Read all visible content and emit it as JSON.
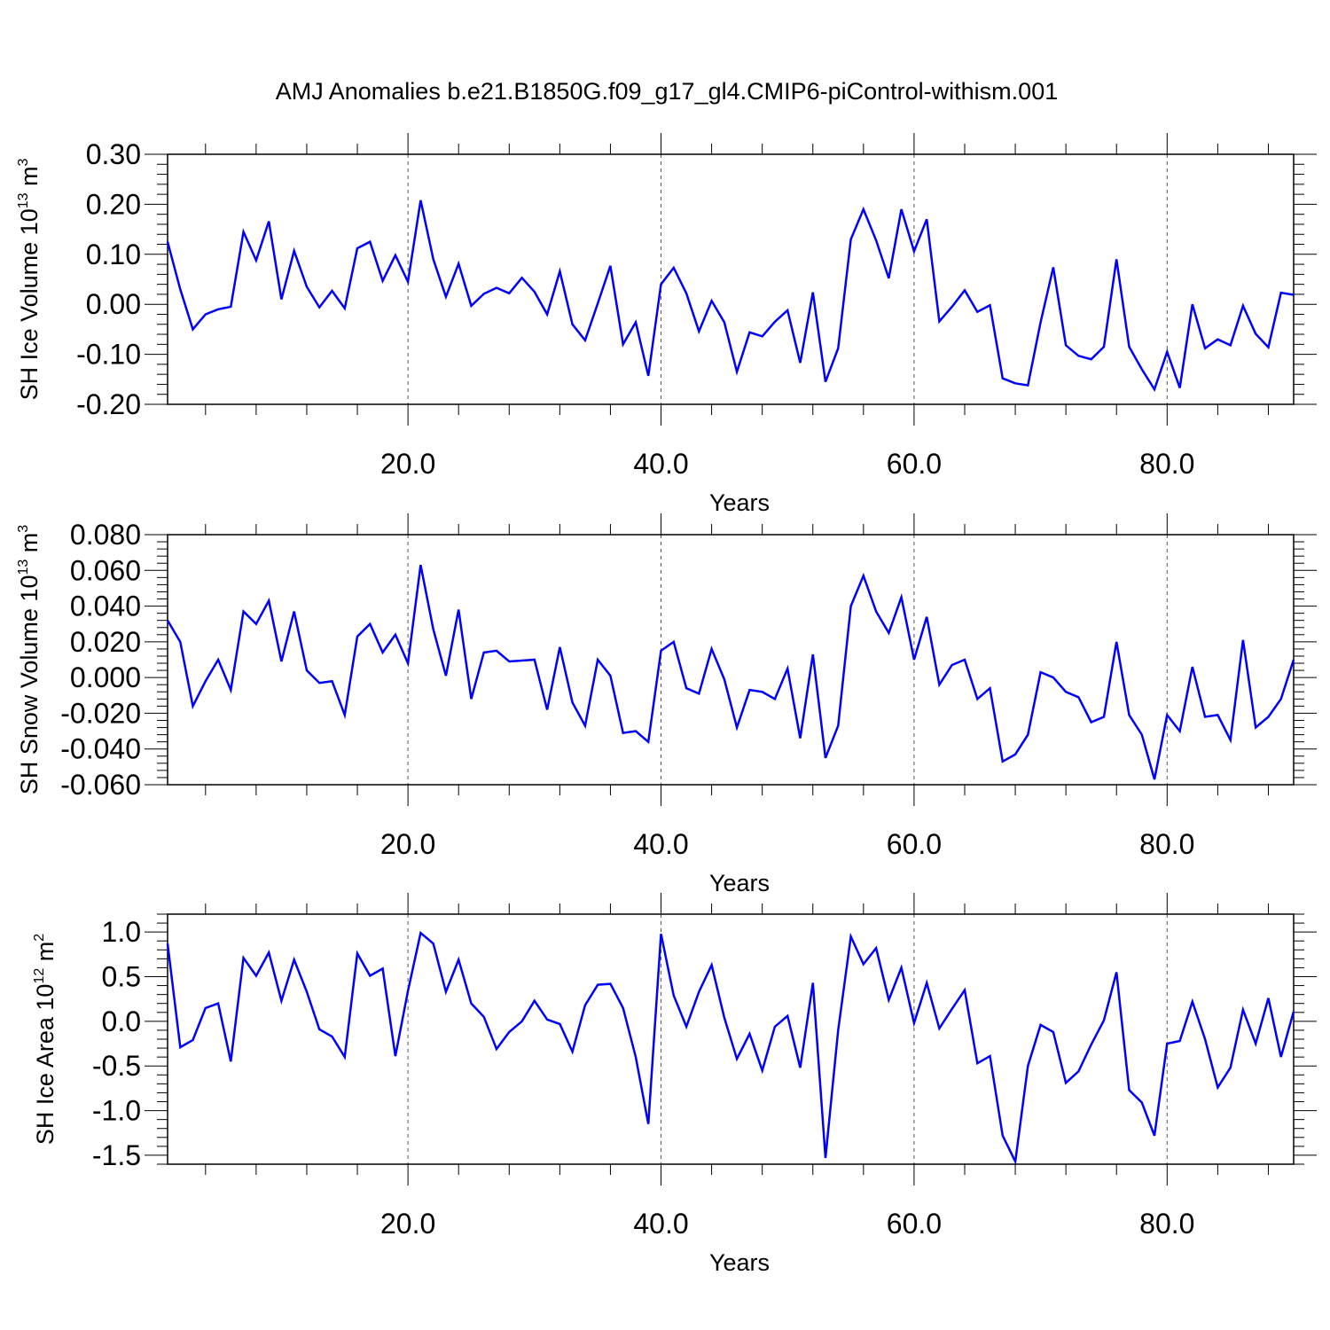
{
  "figure": {
    "title": "AMJ Anomalies b.e21.B1850G.f09_g17_gl4.CMIP6-piControl-withism.001",
    "line_color": "#0000ff",
    "grid_color": "#555555"
  },
  "chart_data": [
    {
      "type": "line",
      "title": "",
      "xlabel": "Years",
      "ylabel": {
        "prefix": "SH Ice Volume 10",
        "exponent": "13",
        "unit": " m",
        "unit_exponent": "3"
      },
      "xlim": [
        1,
        90
      ],
      "ylim": [
        -0.2,
        0.3
      ],
      "x_ticks": [
        20,
        40,
        60,
        80
      ],
      "x_tick_labels": [
        "20.0",
        "40.0",
        "60.0",
        "80.0"
      ],
      "y_ticks": [
        -0.2,
        -0.1,
        0.0,
        0.1,
        0.2,
        0.3
      ],
      "y_tick_labels": [
        "-0.20",
        "-0.10",
        "0.00",
        "0.10",
        "0.20",
        "0.30"
      ],
      "y_minor_step": 0.02,
      "x_minor_step": 4,
      "x_grid": true,
      "series": [
        {
          "x_start": 1,
          "values": [
            0.125,
            0.03,
            -0.05,
            -0.02,
            -0.01,
            -0.005,
            0.145,
            0.088,
            0.166,
            0.01,
            0.107,
            0.035,
            -0.006,
            0.027,
            -0.008,
            0.112,
            0.125,
            0.047,
            0.098,
            0.045,
            0.208,
            0.09,
            0.015,
            0.081,
            -0.003,
            0.021,
            0.033,
            0.022,
            0.053,
            0.025,
            -0.02,
            0.066,
            -0.04,
            -0.072,
            0.002,
            0.077,
            -0.08,
            -0.036,
            -0.143,
            0.04,
            0.073,
            0.022,
            -0.054,
            0.007,
            -0.036,
            -0.135,
            -0.056,
            -0.064,
            -0.035,
            -0.012,
            -0.117,
            0.024,
            -0.155,
            -0.088,
            0.13,
            0.19,
            0.128,
            0.052,
            0.19,
            0.106,
            0.17,
            -0.034,
            -0.005,
            0.028,
            -0.015,
            -0.002,
            -0.148,
            -0.158,
            -0.162,
            -0.036,
            0.074,
            -0.082,
            -0.103,
            -0.11,
            -0.085,
            0.09,
            -0.085,
            -0.13,
            -0.17,
            -0.095,
            -0.167,
            0.0,
            -0.088,
            -0.07,
            -0.082,
            -0.003,
            -0.059,
            -0.086,
            0.023,
            0.019
          ]
        }
      ]
    },
    {
      "type": "line",
      "title": "",
      "xlabel": "Years",
      "ylabel": {
        "prefix": "SH Snow Volume 10",
        "exponent": "13",
        "unit": " m",
        "unit_exponent": "3"
      },
      "xlim": [
        1,
        90
      ],
      "ylim": [
        -0.06,
        0.08
      ],
      "x_ticks": [
        20,
        40,
        60,
        80
      ],
      "x_tick_labels": [
        "20.0",
        "40.0",
        "60.0",
        "80.0"
      ],
      "y_ticks": [
        -0.06,
        -0.04,
        -0.02,
        0.0,
        0.02,
        0.04,
        0.06,
        0.08
      ],
      "y_tick_labels": [
        "-0.060",
        "-0.040",
        "-0.020",
        "0.000",
        "0.020",
        "0.040",
        "0.060",
        "0.080"
      ],
      "y_minor_step": 0.004,
      "x_minor_step": 4,
      "x_grid": true,
      "series": [
        {
          "x_start": 1,
          "values": [
            0.032,
            0.02,
            -0.016,
            -0.002,
            0.01,
            -0.007,
            0.037,
            0.03,
            0.043,
            0.009,
            0.037,
            0.004,
            -0.003,
            -0.002,
            -0.021,
            0.023,
            0.03,
            0.014,
            0.024,
            0.008,
            0.063,
            0.027,
            0.001,
            0.038,
            -0.012,
            0.014,
            0.015,
            0.009,
            0.0095,
            0.01,
            -0.018,
            0.017,
            -0.014,
            -0.027,
            0.01,
            0.001,
            -0.031,
            -0.03,
            -0.036,
            0.015,
            0.02,
            -0.006,
            -0.009,
            0.016,
            -0.001,
            -0.028,
            -0.007,
            -0.008,
            -0.012,
            0.005,
            -0.034,
            0.013,
            -0.045,
            -0.027,
            0.04,
            0.057,
            0.037,
            0.025,
            0.045,
            0.01,
            0.034,
            -0.004,
            0.007,
            0.01,
            -0.012,
            -0.006,
            -0.047,
            -0.043,
            -0.032,
            0.003,
            0.0,
            -0.008,
            -0.011,
            -0.025,
            -0.022,
            0.02,
            -0.021,
            -0.032,
            -0.057,
            -0.021,
            -0.03,
            0.006,
            -0.022,
            -0.021,
            -0.035,
            0.021,
            -0.028,
            -0.022,
            -0.012,
            0.01
          ]
        }
      ]
    },
    {
      "type": "line",
      "title": "",
      "xlabel": "Years",
      "ylabel": {
        "prefix": "SH Ice Area 10",
        "exponent": "12",
        "unit": " m",
        "unit_exponent": "2"
      },
      "xlim": [
        1,
        90
      ],
      "ylim": [
        -1.6,
        1.2
      ],
      "x_ticks": [
        20,
        40,
        60,
        80
      ],
      "x_tick_labels": [
        "20.0",
        "40.0",
        "60.0",
        "80.0"
      ],
      "y_ticks": [
        -1.5,
        -1.0,
        -0.5,
        0.0,
        0.5,
        1.0
      ],
      "y_tick_labels": [
        "-1.5",
        "-1.0",
        "-0.5",
        "0.0",
        "0.5",
        "1.0"
      ],
      "y_minor_step": 0.1,
      "x_minor_step": 4,
      "x_grid": true,
      "series": [
        {
          "x_start": 1,
          "values": [
            0.87,
            -0.29,
            -0.21,
            0.15,
            0.2,
            -0.45,
            0.71,
            0.51,
            0.77,
            0.23,
            0.69,
            0.33,
            -0.09,
            -0.17,
            -0.4,
            0.76,
            0.51,
            0.59,
            -0.39,
            0.34,
            0.99,
            0.87,
            0.33,
            0.69,
            0.2,
            0.05,
            -0.31,
            -0.12,
            0.0,
            0.23,
            0.02,
            -0.03,
            -0.34,
            0.18,
            0.41,
            0.42,
            0.15,
            -0.4,
            -1.15,
            0.98,
            0.29,
            -0.06,
            0.33,
            0.63,
            0.04,
            -0.42,
            -0.14,
            -0.55,
            -0.06,
            0.06,
            -0.52,
            0.43,
            -1.53,
            -0.1,
            0.95,
            0.64,
            0.82,
            0.24,
            0.6,
            -0.02,
            0.43,
            -0.08,
            0.14,
            0.35,
            -0.47,
            -0.39,
            -1.28,
            -1.57,
            -0.5,
            -0.04,
            -0.12,
            -0.69,
            -0.56,
            -0.26,
            0.01,
            0.55,
            -0.77,
            -0.91,
            -1.28,
            -0.25,
            -0.22,
            0.22,
            -0.2,
            -0.74,
            -0.52,
            0.13,
            -0.25,
            0.26,
            -0.4,
            0.11
          ]
        }
      ]
    }
  ]
}
